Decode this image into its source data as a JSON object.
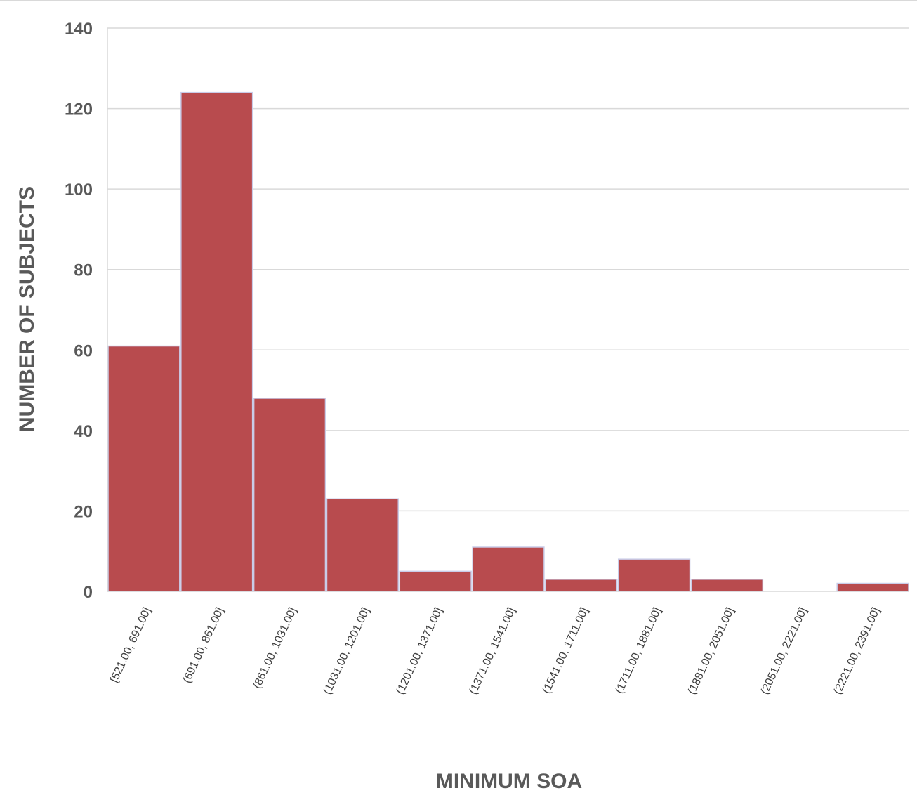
{
  "chart_data": {
    "type": "bar",
    "categories": [
      "[521.00, 691.00]",
      "(691.00, 861.00]",
      "(861.00, 1031.00]",
      "(1031.00, 1201.00]",
      "(1201.00, 1371.00]",
      "(1371.00, 1541.00]",
      "(1541.00, 1711.00]",
      "(1711.00, 1881.00]",
      "(1881.00, 2051.00]",
      "(2051.00, 2221.00]",
      "(2221.00, 2391.00]"
    ],
    "values": [
      61,
      124,
      48,
      23,
      5,
      11,
      3,
      8,
      3,
      0,
      2
    ],
    "xlabel": "MINIMUM SOA",
    "ylabel": "NUMBER OF SUBJECTS",
    "ylim": [
      0,
      140
    ],
    "yticks": [
      "0",
      "20",
      "40",
      "60",
      "80",
      "100",
      "120",
      "140"
    ],
    "grid": true,
    "colors": {
      "bar": "#b84b4e",
      "bar_edge": "#c9cce8",
      "grid": "#d9d9d9",
      "axis_text": "#595959"
    }
  }
}
